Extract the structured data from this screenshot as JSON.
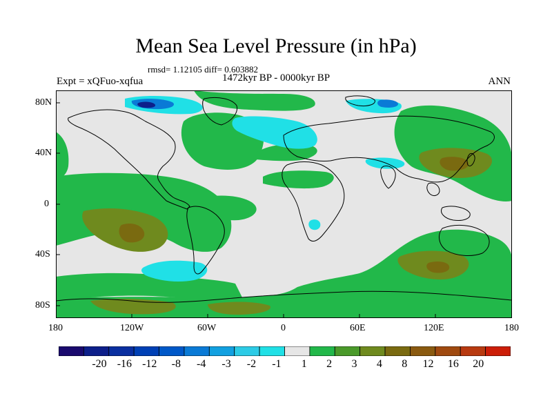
{
  "title": "Mean Sea Level Pressure (in hPa)",
  "stats": "rmsd= 1.12105 diff= 0.603882",
  "period": "1472kyr BP - 0000kyr BP",
  "experiment": "Expt = xQFuo-xqfua",
  "season": "ANN",
  "lat_labels": [
    "80N",
    "40N",
    "0",
    "40S",
    "80S"
  ],
  "lon_labels": [
    "180",
    "120W",
    "60W",
    "0",
    "60E",
    "120E",
    "180"
  ],
  "colorbar": {
    "colors": [
      "#1a0a6e",
      "#0d1f8a",
      "#0a2fa0",
      "#0040b5",
      "#0058c8",
      "#0a7ad6",
      "#12a0e0",
      "#2ccbe6",
      "#20e0e6",
      "#e6e6e6",
      "#22b84a",
      "#4a9a2a",
      "#6f8a1e",
      "#7a6a10",
      "#8a5a10",
      "#a04a10",
      "#b83a10",
      "#cc1e08"
    ],
    "labels": [
      "-20",
      "-16",
      "-12",
      "-8",
      "-4",
      "-3",
      "-2",
      "-1",
      "1",
      "2",
      "3",
      "4",
      "8",
      "12",
      "16",
      "20"
    ]
  }
}
